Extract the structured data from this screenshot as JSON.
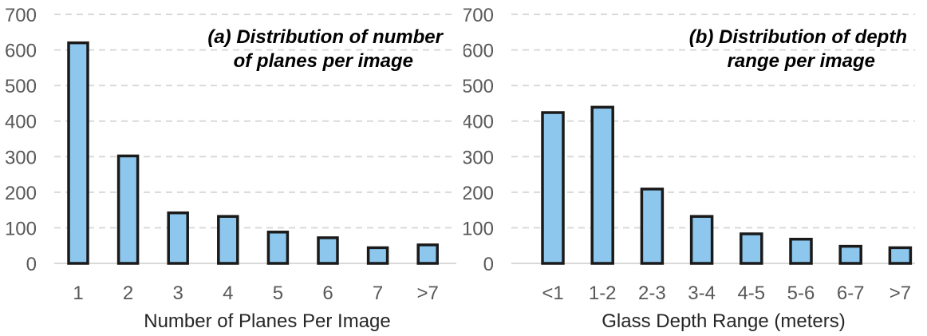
{
  "colors": {
    "bar_fill": "#8dc7ee",
    "bar_stroke": "#1a1a1a",
    "grid": "#d9d9d9"
  },
  "chart_data": [
    {
      "type": "bar",
      "title_lines": [
        "(a) Distribution of number",
        "of planes per image"
      ],
      "xlabel": "Number of Planes Per Image",
      "ylabel": "",
      "categories": [
        "1",
        "2",
        "3",
        "4",
        "5",
        "6",
        "7",
        ">7"
      ],
      "values": [
        620,
        302,
        142,
        132,
        88,
        72,
        44,
        52
      ],
      "ylim": [
        0,
        700
      ],
      "yticks": [
        "0",
        "100",
        "200",
        "300",
        "400",
        "500",
        "600",
        "700"
      ],
      "grid": "horizontal dashed",
      "legend": "none"
    },
    {
      "type": "bar",
      "title_lines": [
        "(b) Distribution of depth",
        "range per image"
      ],
      "xlabel": "Glass Depth Range (meters)",
      "ylabel": "",
      "categories": [
        "<1",
        "1-2",
        "2-3",
        "3-4",
        "4-5",
        "5-6",
        "6-7",
        ">7"
      ],
      "values": [
        424,
        439,
        209,
        132,
        83,
        68,
        48,
        44
      ],
      "ylim": [
        0,
        700
      ],
      "yticks": [
        "0",
        "100",
        "200",
        "300",
        "400",
        "500",
        "600",
        "700"
      ],
      "grid": "horizontal dashed",
      "legend": "none"
    }
  ]
}
